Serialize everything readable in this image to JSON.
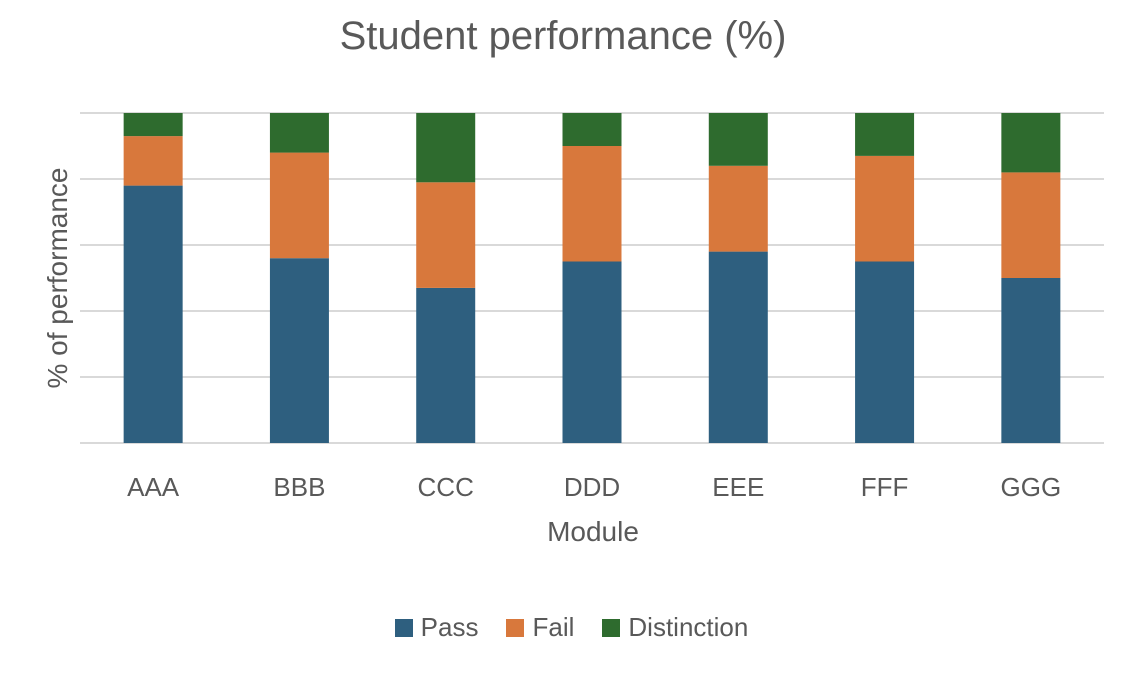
{
  "chart_data": {
    "type": "bar",
    "stacked": true,
    "title": "Student performance (%)",
    "xlabel": "Module",
    "ylabel": "% of performance",
    "categories": [
      "AAA",
      "BBB",
      "CCC",
      "DDD",
      "EEE",
      "FFF",
      "GGG"
    ],
    "series": [
      {
        "name": "Pass",
        "color": "#2E5F7F",
        "values": [
          78,
          56,
          47,
          55,
          58,
          55,
          50
        ]
      },
      {
        "name": "Fail",
        "color": "#D8783C",
        "values": [
          15,
          32,
          32,
          35,
          26,
          32,
          32
        ]
      },
      {
        "name": "Distinction",
        "color": "#2E6B2E",
        "values": [
          7,
          12,
          21,
          10,
          16,
          13,
          18
        ]
      }
    ],
    "ylim": [
      0,
      100
    ],
    "y_gridlines": [
      0,
      20,
      40,
      60,
      80,
      100
    ],
    "y_tick_labels_visible": false,
    "grid": true,
    "legend_position": "bottom"
  }
}
